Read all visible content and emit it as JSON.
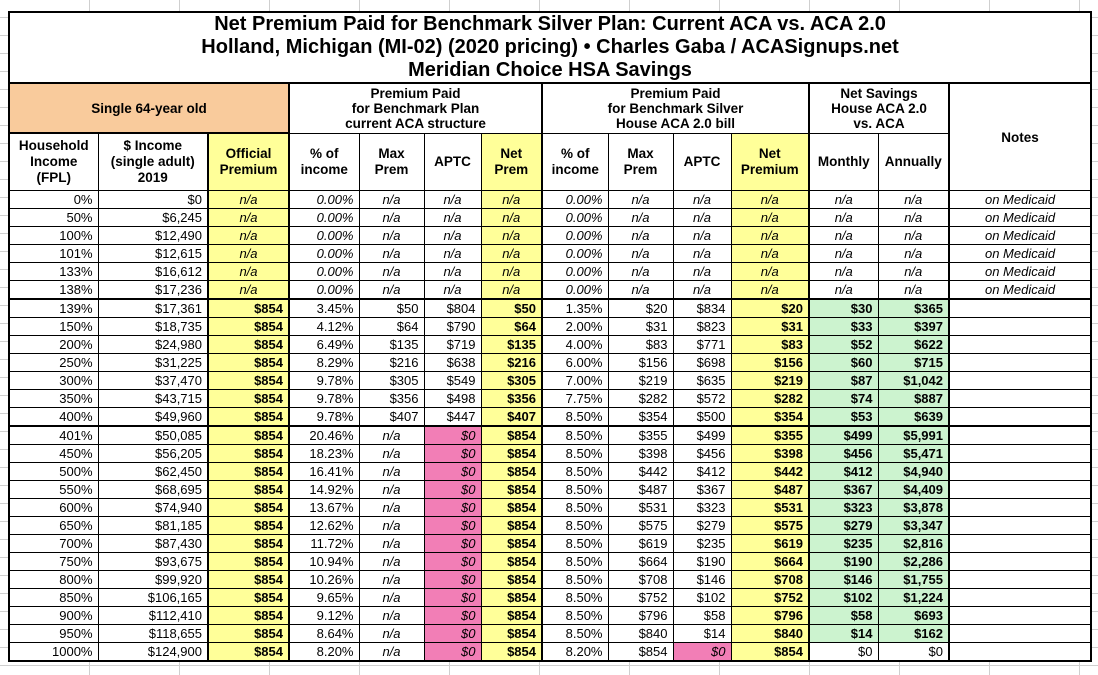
{
  "colors": {
    "orange": "#F9CB9C",
    "yellow": "#FFFF99",
    "pink": "#F27EB6",
    "green": "#CCF3CF",
    "border": "#000000"
  },
  "title": {
    "text": "Net Premium Paid for Benchmark Silver Plan: Current ACA vs. ACA 2.0\nHolland, Michigan (MI-02) (2020 pricing) • Charles Gaba / ACASignups.net\nMeridian Choice HSA Savings"
  },
  "header": {
    "subject": "Single 64-year old",
    "group_current_aca": "Premium Paid\nfor Benchmark Plan\ncurrent ACA structure",
    "group_aca2": "Premium Paid\nfor Benchmark Silver\nHouse ACA 2.0 bill",
    "group_savings": "Net Savings\nHouse ACA 2.0\nvs. ACA",
    "notes": "Notes",
    "columns": {
      "fpl": "Household\nIncome\n(FPL)",
      "income": "$ Income\n(single adult)\n2019",
      "official": "Official\nPremium",
      "aca_pct": "% of\nincome",
      "aca_max": "Max\nPrem",
      "aca_aptc": "APTC",
      "aca_net": "Net\nPrem",
      "a2_pct": "% of\nincome",
      "a2_max": "Max\nPrem",
      "a2_aptc": "APTC",
      "a2_net": "Net\nPremium",
      "monthly": "Monthly",
      "annually": "Annually"
    }
  },
  "rows": [
    {
      "type": "medicaid",
      "fpl": "0%",
      "income": "$0",
      "official": "n/a",
      "aca_pct": "0.00%",
      "aca_max": "n/a",
      "aca_aptc": "n/a",
      "aca_net": "n/a",
      "a2_pct": "0.00%",
      "a2_max": "n/a",
      "a2_aptc": "n/a",
      "a2_net": "n/a",
      "mo": "n/a",
      "yr": "n/a",
      "notes": "on Medicaid"
    },
    {
      "type": "medicaid",
      "fpl": "50%",
      "income": "$6,245",
      "official": "n/a",
      "aca_pct": "0.00%",
      "aca_max": "n/a",
      "aca_aptc": "n/a",
      "aca_net": "n/a",
      "a2_pct": "0.00%",
      "a2_max": "n/a",
      "a2_aptc": "n/a",
      "a2_net": "n/a",
      "mo": "n/a",
      "yr": "n/a",
      "notes": "on Medicaid"
    },
    {
      "type": "medicaid",
      "fpl": "100%",
      "income": "$12,490",
      "official": "n/a",
      "aca_pct": "0.00%",
      "aca_max": "n/a",
      "aca_aptc": "n/a",
      "aca_net": "n/a",
      "a2_pct": "0.00%",
      "a2_max": "n/a",
      "a2_aptc": "n/a",
      "a2_net": "n/a",
      "mo": "n/a",
      "yr": "n/a",
      "notes": "on Medicaid"
    },
    {
      "type": "medicaid",
      "fpl": "101%",
      "income": "$12,615",
      "official": "n/a",
      "aca_pct": "0.00%",
      "aca_max": "n/a",
      "aca_aptc": "n/a",
      "aca_net": "n/a",
      "a2_pct": "0.00%",
      "a2_max": "n/a",
      "a2_aptc": "n/a",
      "a2_net": "n/a",
      "mo": "n/a",
      "yr": "n/a",
      "notes": "on Medicaid"
    },
    {
      "type": "medicaid",
      "fpl": "133%",
      "income": "$16,612",
      "official": "n/a",
      "aca_pct": "0.00%",
      "aca_max": "n/a",
      "aca_aptc": "n/a",
      "aca_net": "n/a",
      "a2_pct": "0.00%",
      "a2_max": "n/a",
      "a2_aptc": "n/a",
      "a2_net": "n/a",
      "mo": "n/a",
      "yr": "n/a",
      "notes": "on Medicaid"
    },
    {
      "type": "medicaid",
      "fpl": "138%",
      "income": "$17,236",
      "official": "n/a",
      "aca_pct": "0.00%",
      "aca_max": "n/a",
      "aca_aptc": "n/a",
      "aca_net": "n/a",
      "a2_pct": "0.00%",
      "a2_max": "n/a",
      "a2_aptc": "n/a",
      "a2_net": "n/a",
      "mo": "n/a",
      "yr": "n/a",
      "notes": "on Medicaid"
    },
    {
      "type": "subsidized",
      "fpl": "139%",
      "income": "$17,361",
      "official": "$854",
      "aca_pct": "3.45%",
      "aca_max": "$50",
      "aca_aptc": "$804",
      "aca_net": "$50",
      "a2_pct": "1.35%",
      "a2_max": "$20",
      "a2_aptc": "$834",
      "a2_net": "$20",
      "mo": "$30",
      "yr": "$365",
      "notes": ""
    },
    {
      "type": "subsidized",
      "fpl": "150%",
      "income": "$18,735",
      "official": "$854",
      "aca_pct": "4.12%",
      "aca_max": "$64",
      "aca_aptc": "$790",
      "aca_net": "$64",
      "a2_pct": "2.00%",
      "a2_max": "$31",
      "a2_aptc": "$823",
      "a2_net": "$31",
      "mo": "$33",
      "yr": "$397",
      "notes": ""
    },
    {
      "type": "subsidized",
      "fpl": "200%",
      "income": "$24,980",
      "official": "$854",
      "aca_pct": "6.49%",
      "aca_max": "$135",
      "aca_aptc": "$719",
      "aca_net": "$135",
      "a2_pct": "4.00%",
      "a2_max": "$83",
      "a2_aptc": "$771",
      "a2_net": "$83",
      "mo": "$52",
      "yr": "$622",
      "notes": ""
    },
    {
      "type": "subsidized",
      "fpl": "250%",
      "income": "$31,225",
      "official": "$854",
      "aca_pct": "8.29%",
      "aca_max": "$216",
      "aca_aptc": "$638",
      "aca_net": "$216",
      "a2_pct": "6.00%",
      "a2_max": "$156",
      "a2_aptc": "$698",
      "a2_net": "$156",
      "mo": "$60",
      "yr": "$715",
      "notes": ""
    },
    {
      "type": "subsidized",
      "fpl": "300%",
      "income": "$37,470",
      "official": "$854",
      "aca_pct": "9.78%",
      "aca_max": "$305",
      "aca_aptc": "$549",
      "aca_net": "$305",
      "a2_pct": "7.00%",
      "a2_max": "$219",
      "a2_aptc": "$635",
      "a2_net": "$219",
      "mo": "$87",
      "yr": "$1,042",
      "notes": ""
    },
    {
      "type": "subsidized",
      "fpl": "350%",
      "income": "$43,715",
      "official": "$854",
      "aca_pct": "9.78%",
      "aca_max": "$356",
      "aca_aptc": "$498",
      "aca_net": "$356",
      "a2_pct": "7.75%",
      "a2_max": "$282",
      "a2_aptc": "$572",
      "a2_net": "$282",
      "mo": "$74",
      "yr": "$887",
      "notes": ""
    },
    {
      "type": "subsidized",
      "fpl": "400%",
      "income": "$49,960",
      "official": "$854",
      "aca_pct": "9.78%",
      "aca_max": "$407",
      "aca_aptc": "$447",
      "aca_net": "$407",
      "a2_pct": "8.50%",
      "a2_max": "$354",
      "a2_aptc": "$500",
      "a2_net": "$354",
      "mo": "$53",
      "yr": "$639",
      "notes": ""
    },
    {
      "type": "unsub",
      "fpl": "401%",
      "income": "$50,085",
      "official": "$854",
      "aca_pct": "20.46%",
      "aca_max": "n/a",
      "aca_aptc": "$0",
      "aca_net": "$854",
      "a2_pct": "8.50%",
      "a2_max": "$355",
      "a2_aptc": "$499",
      "a2_net": "$355",
      "mo": "$499",
      "yr": "$5,991",
      "notes": ""
    },
    {
      "type": "unsub",
      "fpl": "450%",
      "income": "$56,205",
      "official": "$854",
      "aca_pct": "18.23%",
      "aca_max": "n/a",
      "aca_aptc": "$0",
      "aca_net": "$854",
      "a2_pct": "8.50%",
      "a2_max": "$398",
      "a2_aptc": "$456",
      "a2_net": "$398",
      "mo": "$456",
      "yr": "$5,471",
      "notes": ""
    },
    {
      "type": "unsub",
      "fpl": "500%",
      "income": "$62,450",
      "official": "$854",
      "aca_pct": "16.41%",
      "aca_max": "n/a",
      "aca_aptc": "$0",
      "aca_net": "$854",
      "a2_pct": "8.50%",
      "a2_max": "$442",
      "a2_aptc": "$412",
      "a2_net": "$442",
      "mo": "$412",
      "yr": "$4,940",
      "notes": ""
    },
    {
      "type": "unsub",
      "fpl": "550%",
      "income": "$68,695",
      "official": "$854",
      "aca_pct": "14.92%",
      "aca_max": "n/a",
      "aca_aptc": "$0",
      "aca_net": "$854",
      "a2_pct": "8.50%",
      "a2_max": "$487",
      "a2_aptc": "$367",
      "a2_net": "$487",
      "mo": "$367",
      "yr": "$4,409",
      "notes": ""
    },
    {
      "type": "unsub",
      "fpl": "600%",
      "income": "$74,940",
      "official": "$854",
      "aca_pct": "13.67%",
      "aca_max": "n/a",
      "aca_aptc": "$0",
      "aca_net": "$854",
      "a2_pct": "8.50%",
      "a2_max": "$531",
      "a2_aptc": "$323",
      "a2_net": "$531",
      "mo": "$323",
      "yr": "$3,878",
      "notes": ""
    },
    {
      "type": "unsub",
      "fpl": "650%",
      "income": "$81,185",
      "official": "$854",
      "aca_pct": "12.62%",
      "aca_max": "n/a",
      "aca_aptc": "$0",
      "aca_net": "$854",
      "a2_pct": "8.50%",
      "a2_max": "$575",
      "a2_aptc": "$279",
      "a2_net": "$575",
      "mo": "$279",
      "yr": "$3,347",
      "notes": ""
    },
    {
      "type": "unsub",
      "fpl": "700%",
      "income": "$87,430",
      "official": "$854",
      "aca_pct": "11.72%",
      "aca_max": "n/a",
      "aca_aptc": "$0",
      "aca_net": "$854",
      "a2_pct": "8.50%",
      "a2_max": "$619",
      "a2_aptc": "$235",
      "a2_net": "$619",
      "mo": "$235",
      "yr": "$2,816",
      "notes": ""
    },
    {
      "type": "unsub",
      "fpl": "750%",
      "income": "$93,675",
      "official": "$854",
      "aca_pct": "10.94%",
      "aca_max": "n/a",
      "aca_aptc": "$0",
      "aca_net": "$854",
      "a2_pct": "8.50%",
      "a2_max": "$664",
      "a2_aptc": "$190",
      "a2_net": "$664",
      "mo": "$190",
      "yr": "$2,286",
      "notes": ""
    },
    {
      "type": "unsub",
      "fpl": "800%",
      "income": "$99,920",
      "official": "$854",
      "aca_pct": "10.26%",
      "aca_max": "n/a",
      "aca_aptc": "$0",
      "aca_net": "$854",
      "a2_pct": "8.50%",
      "a2_max": "$708",
      "a2_aptc": "$146",
      "a2_net": "$708",
      "mo": "$146",
      "yr": "$1,755",
      "notes": ""
    },
    {
      "type": "unsub",
      "fpl": "850%",
      "income": "$106,165",
      "official": "$854",
      "aca_pct": "9.65%",
      "aca_max": "n/a",
      "aca_aptc": "$0",
      "aca_net": "$854",
      "a2_pct": "8.50%",
      "a2_max": "$752",
      "a2_aptc": "$102",
      "a2_net": "$752",
      "mo": "$102",
      "yr": "$1,224",
      "notes": ""
    },
    {
      "type": "unsub",
      "fpl": "900%",
      "income": "$112,410",
      "official": "$854",
      "aca_pct": "9.12%",
      "aca_max": "n/a",
      "aca_aptc": "$0",
      "aca_net": "$854",
      "a2_pct": "8.50%",
      "a2_max": "$796",
      "a2_aptc": "$58",
      "a2_net": "$796",
      "mo": "$58",
      "yr": "$693",
      "notes": ""
    },
    {
      "type": "unsub",
      "fpl": "950%",
      "income": "$118,655",
      "official": "$854",
      "aca_pct": "8.64%",
      "aca_max": "n/a",
      "aca_aptc": "$0",
      "aca_net": "$854",
      "a2_pct": "8.50%",
      "a2_max": "$840",
      "a2_aptc": "$14",
      "a2_net": "$840",
      "mo": "$14",
      "yr": "$162",
      "notes": ""
    },
    {
      "type": "last",
      "fpl": "1000%",
      "income": "$124,900",
      "official": "$854",
      "aca_pct": "8.20%",
      "aca_max": "n/a",
      "aca_aptc": "$0",
      "aca_net": "$854",
      "a2_pct": "8.20%",
      "a2_max": "$854",
      "a2_aptc": "$0",
      "a2_net": "$854",
      "mo": "$0",
      "yr": "$0",
      "notes": ""
    }
  ]
}
